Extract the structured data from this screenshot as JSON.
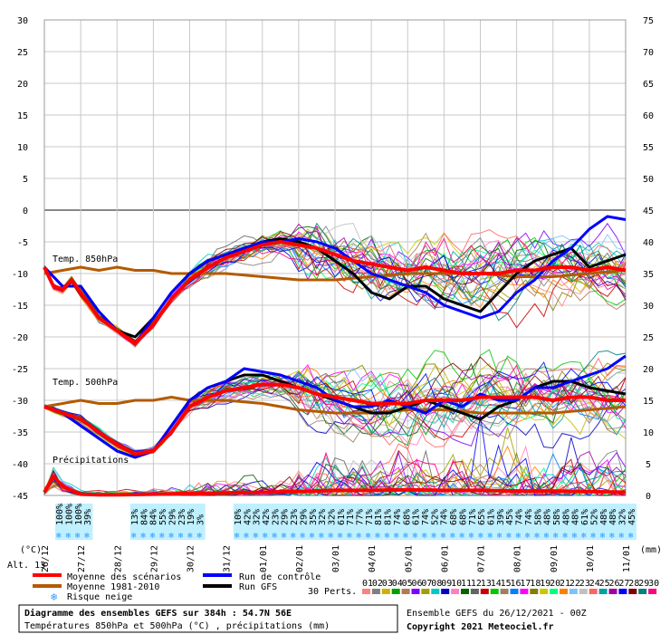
{
  "chart_data": {
    "type": "line",
    "title": "Diagramme des ensembles GEFS sur 384h : 54.7N 56E",
    "subtitle": "Températures 850hPa et 500hPa (°C) , précipitations (mm)",
    "run_info": "Ensemble GEFS du 26/12/2021 - 00Z",
    "copyright": "Copyright 2021 Meteociel.fr",
    "y_left_unit": "(°C)",
    "y_right_unit": "(mm)",
    "altitude_label": "Alt. 13",
    "y_left_ticks": [
      30,
      25,
      20,
      15,
      10,
      5,
      0,
      -5,
      -10,
      -15,
      -20,
      -25,
      -30,
      -35,
      -40,
      -45
    ],
    "y_right_ticks": [
      75,
      70,
      65,
      60,
      55,
      50,
      45,
      40,
      35,
      30,
      25,
      20,
      15,
      10,
      5,
      0
    ],
    "ylim_left": [
      -45,
      30
    ],
    "ylim_right": [
      0,
      75
    ],
    "x_hours_range": [
      0,
      384
    ],
    "x_ticks": [
      "26/12",
      "27/12",
      "28/12",
      "29/12",
      "30/12",
      "31/12",
      "01/01",
      "02/01",
      "03/01",
      "04/01",
      "05/01",
      "06/01",
      "07/01",
      "08/01",
      "09/01",
      "10/01",
      "11/01"
    ],
    "labels": {
      "t850": "Temp. 850hPa",
      "t500": "Temp. 500hPa",
      "precip": "Précipitations"
    },
    "snow_risk_percent": [
      "100%",
      "100%",
      "100%",
      "39%",
      "",
      "",
      "",
      "",
      "13%",
      "84%",
      "84%",
      "55%",
      "29%",
      "23%",
      "19%",
      "3%",
      "",
      "",
      "",
      "10%",
      "42%",
      "32%",
      "42%",
      "23%",
      "29%",
      "23%",
      "29%",
      "35%",
      "32%",
      "32%",
      "61%",
      "71%",
      "77%",
      "71%",
      "81%",
      "81%",
      "74%",
      "68%",
      "61%",
      "74%",
      "52%",
      "74%",
      "68%",
      "68%",
      "71%",
      "65%",
      "61%",
      "39%",
      "45%",
      "74%",
      "74%",
      "58%",
      "48%",
      "58%",
      "48%",
      "48%",
      "61%",
      "52%",
      "48%",
      "48%",
      "32%",
      "45%"
    ],
    "legend": {
      "mean": "Moyenne des scénarios",
      "climo": "Moyenne 1981-2010",
      "snow": "Risque neige",
      "control": "Run de contrôle",
      "gfs": "Run GFS",
      "perts": "30 Perts."
    },
    "member_labels": [
      "01",
      "02",
      "03",
      "04",
      "05",
      "06",
      "07",
      "08",
      "09",
      "10",
      "11",
      "12",
      "13",
      "14",
      "15",
      "16",
      "17",
      "18",
      "19",
      "20",
      "21",
      "22",
      "23",
      "24",
      "25",
      "26",
      "27",
      "28",
      "29",
      "30"
    ],
    "member_colors": [
      "#ff8080",
      "#808080",
      "#c8b400",
      "#00a000",
      "#b4785a",
      "#8000ff",
      "#a0a000",
      "#00c8c8",
      "#0000c8",
      "#ff80c0",
      "#006400",
      "#646464",
      "#c80000",
      "#00c800",
      "#a08060",
      "#0080ff",
      "#ff00ff",
      "#808000",
      "#c8c800",
      "#00ff80",
      "#ff8000",
      "#80c0ff",
      "#c0c0c0",
      "#ff6464",
      "#00a0a0",
      "#a000a0",
      "#0000ff",
      "#800000",
      "#008080",
      "#ff0080"
    ],
    "colors": {
      "mean": "#ff0000",
      "climo": "#b45a00",
      "control": "#0000ff",
      "gfs": "#000000",
      "snow_band": "#bff0ff"
    },
    "series_mean_t850": {
      "x": [
        0,
        6,
        12,
        18,
        24,
        36,
        48,
        60,
        72,
        84,
        96,
        108,
        120,
        132,
        144,
        156,
        168,
        180,
        192,
        204,
        216,
        228,
        240,
        252,
        264,
        276,
        288,
        300,
        312,
        324,
        336,
        348,
        360,
        372,
        384
      ],
      "y": [
        -9,
        -12,
        -12.5,
        -11,
        -13,
        -17,
        -19,
        -21,
        -18,
        -14,
        -11,
        -9,
        -7.5,
        -6.5,
        -5.5,
        -5,
        -5.5,
        -6,
        -7,
        -8,
        -8.5,
        -9,
        -9.5,
        -9,
        -9.5,
        -10,
        -10,
        -10,
        -9.5,
        -9.5,
        -9,
        -9,
        -9.5,
        -9,
        -9.5
      ]
    },
    "series_climo_t850": {
      "x": [
        0,
        12,
        24,
        36,
        48,
        60,
        72,
        84,
        96,
        108,
        120,
        144,
        168,
        192,
        216,
        240,
        264,
        288,
        312,
        336,
        360,
        384
      ],
      "y": [
        -10,
        -9.5,
        -9,
        -9.5,
        -9,
        -9.5,
        -9.5,
        -10,
        -10,
        -10,
        -10,
        -10.5,
        -11,
        -11,
        -10.5,
        -10,
        -10,
        -10,
        -10.5,
        -10.5,
        -10,
        -9.5
      ]
    },
    "series_control_t850": {
      "x": [
        0,
        12,
        24,
        36,
        48,
        60,
        72,
        84,
        96,
        108,
        120,
        132,
        144,
        156,
        168,
        180,
        192,
        204,
        216,
        228,
        240,
        252,
        264,
        276,
        288,
        300,
        312,
        324,
        336,
        348,
        360,
        372,
        384
      ],
      "y": [
        -9,
        -12,
        -12,
        -16,
        -19,
        -21,
        -17,
        -13,
        -10,
        -8,
        -7,
        -6,
        -5,
        -5,
        -4.5,
        -5,
        -6,
        -8,
        -10,
        -11,
        -12,
        -13,
        -15,
        -16,
        -17,
        -16,
        -13,
        -11,
        -8,
        -6,
        -3,
        -1,
        -1.5
      ]
    },
    "series_gfs_t850": {
      "x": [
        0,
        12,
        24,
        36,
        48,
        60,
        72,
        84,
        96,
        108,
        120,
        132,
        144,
        156,
        168,
        180,
        192,
        204,
        216,
        228,
        240,
        252,
        264,
        276,
        288,
        300,
        312,
        324,
        336,
        348,
        360,
        372,
        384
      ],
      "y": [
        -9,
        -12,
        -12,
        -16,
        -19,
        -20,
        -17,
        -13,
        -10,
        -8,
        -7,
        -6,
        -5,
        -4.5,
        -5,
        -6,
        -8,
        -10,
        -13,
        -14,
        -12,
        -12,
        -14,
        -15,
        -16,
        -13,
        -10,
        -8,
        -7,
        -6,
        -9,
        -8,
        -7
      ]
    },
    "series_mean_t500": {
      "x": [
        0,
        12,
        24,
        36,
        48,
        60,
        72,
        84,
        96,
        108,
        120,
        132,
        144,
        156,
        168,
        180,
        192,
        204,
        216,
        228,
        240,
        252,
        264,
        276,
        288,
        300,
        312,
        324,
        336,
        348,
        360,
        372,
        384
      ],
      "y": [
        -31,
        -32,
        -33,
        -35,
        -37,
        -38.5,
        -38,
        -35,
        -31,
        -29.5,
        -28.5,
        -28,
        -27.5,
        -27.5,
        -28,
        -29,
        -29.5,
        -30,
        -30.5,
        -30.5,
        -30.5,
        -30,
        -30,
        -30,
        -29.5,
        -29.5,
        -29.5,
        -29.5,
        -30,
        -29.5,
        -29.5,
        -30,
        -30
      ]
    },
    "series_climo_t500": {
      "x": [
        0,
        12,
        24,
        36,
        48,
        60,
        72,
        84,
        96,
        108,
        120,
        144,
        168,
        192,
        216,
        240,
        264,
        288,
        312,
        336,
        360,
        384
      ],
      "y": [
        -31,
        -30.5,
        -30,
        -30.5,
        -30.5,
        -30,
        -30,
        -29.5,
        -30,
        -30,
        -30,
        -30.5,
        -31.5,
        -32,
        -32,
        -31.5,
        -31.5,
        -32,
        -32,
        -32,
        -31.5,
        -31
      ]
    },
    "series_control_t500": {
      "x": [
        0,
        12,
        24,
        36,
        48,
        60,
        72,
        84,
        96,
        108,
        120,
        132,
        144,
        156,
        168,
        180,
        192,
        204,
        216,
        228,
        240,
        252,
        264,
        276,
        288,
        300,
        312,
        324,
        336,
        348,
        360,
        372,
        384
      ],
      "y": [
        -31,
        -32,
        -34,
        -36,
        -38,
        -39,
        -38,
        -34,
        -30,
        -28,
        -27,
        -25,
        -25.5,
        -26,
        -27,
        -28,
        -30,
        -31,
        -31,
        -30,
        -31,
        -32,
        -30,
        -31,
        -29,
        -30,
        -30,
        -28,
        -28,
        -27,
        -26,
        -25,
        -23
      ]
    },
    "series_gfs_t500": {
      "x": [
        0,
        12,
        24,
        36,
        48,
        60,
        72,
        84,
        96,
        108,
        120,
        132,
        144,
        156,
        168,
        180,
        192,
        204,
        216,
        228,
        240,
        252,
        264,
        276,
        288,
        300,
        312,
        324,
        336,
        348,
        360,
        372,
        384
      ],
      "y": [
        -31,
        -32,
        -34,
        -36,
        -38,
        -39,
        -38,
        -34,
        -30,
        -28,
        -27,
        -26,
        -26,
        -27,
        -28,
        -29,
        -30,
        -31,
        -32,
        -32,
        -31,
        -30,
        -31,
        -32,
        -33,
        -31,
        -30,
        -28,
        -27,
        -27,
        -28,
        -28.5,
        -29
      ]
    },
    "series_mean_precip_mm": {
      "x": [
        0,
        6,
        12,
        18,
        24,
        36,
        48,
        72,
        96,
        120,
        144,
        168,
        192,
        216,
        240,
        264,
        288,
        312,
        336,
        360,
        384
      ],
      "y": [
        0.5,
        3,
        1.5,
        0.8,
        0.2,
        0.1,
        0.1,
        0.2,
        0.3,
        0.4,
        0.5,
        0.6,
        0.8,
        0.8,
        0.9,
        0.8,
        0.8,
        0.7,
        0.7,
        0.6,
        0.5
      ]
    }
  }
}
